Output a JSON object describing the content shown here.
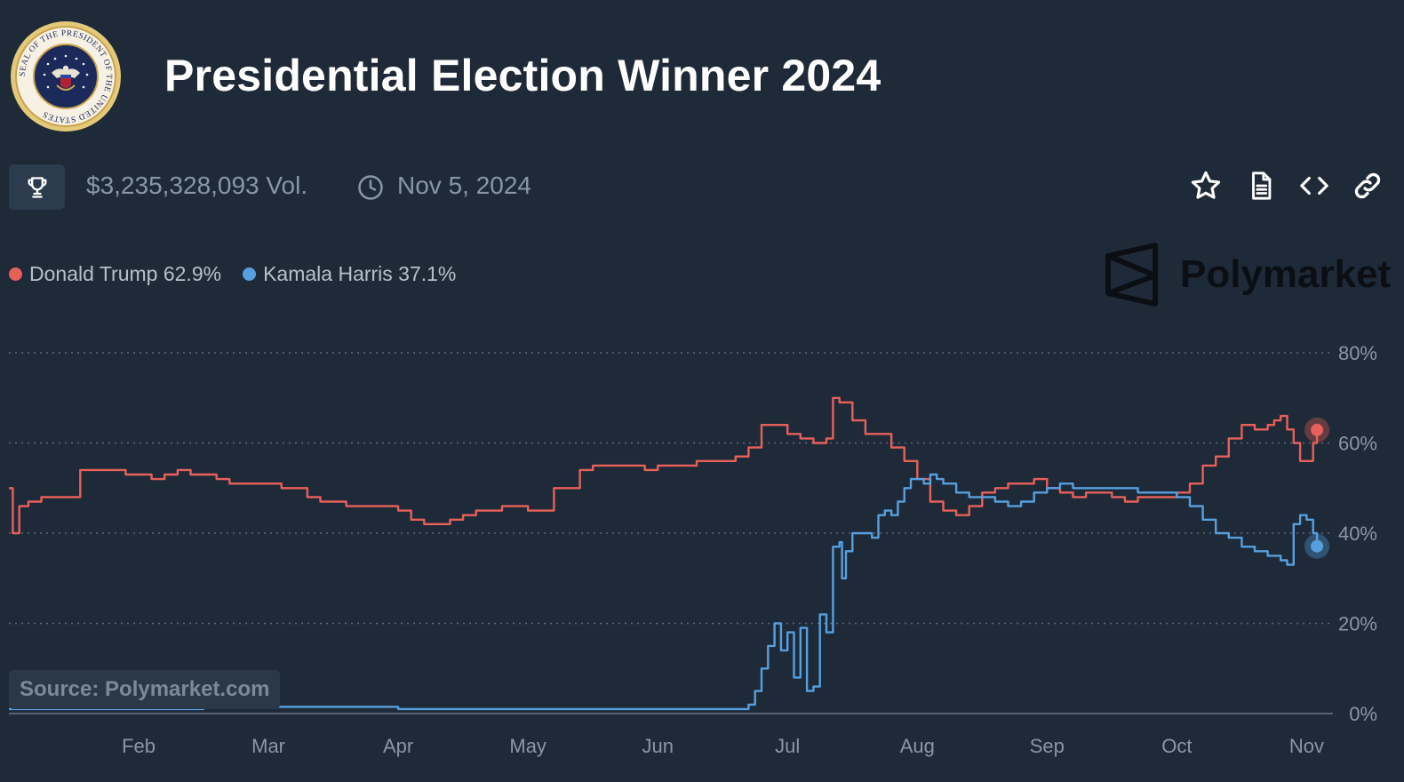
{
  "header": {
    "title": "Presidential Election Winner 2024",
    "seal_text": "SEAL OF THE PRESIDENT OF THE UNITED STATES",
    "volume": "$3,235,328,093 Vol.",
    "end_date": "Nov 5, 2024"
  },
  "icons": {
    "trophy": "trophy-icon",
    "clock": "clock-icon",
    "star": "star-icon",
    "document": "document-icon",
    "embed": "code-icon",
    "link": "link-icon"
  },
  "legend": [
    {
      "label": "Donald Trump 62.9%",
      "color": "#e8605a"
    },
    {
      "label": "Kamala Harris 37.1%",
      "color": "#56a0e0"
    }
  ],
  "brand": {
    "name": "Polymarket"
  },
  "source": "Source: Polymarket.com",
  "chart_data": {
    "type": "line",
    "title": "Presidential Election Winner 2024",
    "xlabel": "",
    "ylabel": "",
    "x_range": [
      0,
      10.1
    ],
    "ylim": [
      0,
      80
    ],
    "yticks": [
      0,
      20,
      40,
      60,
      80
    ],
    "ytick_labels": [
      "0%",
      "20%",
      "40%",
      "60%",
      "80%"
    ],
    "xtick_positions": [
      1,
      2,
      3,
      4,
      5,
      6,
      7,
      8,
      9,
      10
    ],
    "xtick_labels": [
      "Feb",
      "Mar",
      "Apr",
      "May",
      "Jun",
      "Jul",
      "Aug",
      "Sep",
      "Oct",
      "Nov"
    ],
    "grid": true,
    "series": [
      {
        "name": "Donald Trump",
        "color": "#e8605a",
        "final_value": 62.9,
        "x": [
          0,
          0.03,
          0.08,
          0.15,
          0.25,
          0.35,
          0.45,
          0.55,
          0.6,
          0.65,
          0.7,
          0.8,
          0.9,
          1.0,
          1.1,
          1.2,
          1.3,
          1.4,
          1.5,
          1.6,
          1.7,
          1.8,
          1.9,
          2.0,
          2.1,
          2.2,
          2.3,
          2.4,
          2.6,
          2.8,
          3.0,
          3.1,
          3.2,
          3.4,
          3.5,
          3.6,
          3.8,
          4.0,
          4.2,
          4.4,
          4.5,
          4.6,
          4.8,
          4.9,
          5.0,
          5.1,
          5.3,
          5.5,
          5.6,
          5.7,
          5.8,
          5.9,
          6.0,
          6.1,
          6.2,
          6.3,
          6.35,
          6.4,
          6.5,
          6.6,
          6.7,
          6.8,
          6.9,
          7.0,
          7.1,
          7.2,
          7.3,
          7.4,
          7.5,
          7.6,
          7.7,
          7.8,
          7.9,
          8.0,
          8.1,
          8.2,
          8.3,
          8.4,
          8.5,
          8.6,
          8.7,
          8.8,
          8.9,
          9.0,
          9.1,
          9.2,
          9.3,
          9.4,
          9.5,
          9.6,
          9.7,
          9.75,
          9.8,
          9.85,
          9.9,
          9.95,
          10.0,
          10.05,
          10.08
        ],
        "values": [
          50,
          40,
          46,
          47,
          48,
          48,
          48,
          54,
          54,
          54,
          54,
          54,
          53,
          53,
          52,
          53,
          54,
          53,
          53,
          52,
          51,
          51,
          51,
          51,
          50,
          50,
          48,
          47,
          46,
          46,
          45,
          43,
          42,
          43,
          44,
          45,
          46,
          45,
          50,
          54,
          55,
          55,
          55,
          54,
          55,
          55,
          56,
          56,
          57,
          59,
          64,
          64,
          62,
          61,
          60,
          61,
          70,
          69,
          65,
          62,
          62,
          59,
          56,
          52,
          47,
          45,
          44,
          46,
          49,
          50,
          51,
          51,
          52,
          50,
          49,
          48,
          49,
          49,
          48,
          47,
          48,
          48,
          48,
          49,
          51,
          55,
          57,
          61,
          64,
          63,
          64,
          65,
          66,
          63,
          60,
          56,
          56,
          60,
          62.9
        ]
      },
      {
        "name": "Kamala Harris",
        "color": "#56a0e0",
        "final_value": 37.1,
        "x": [
          0,
          0.5,
          1.0,
          1.5,
          2.0,
          2.5,
          3.0,
          3.5,
          4.0,
          4.5,
          5.0,
          5.4,
          5.6,
          5.7,
          5.75,
          5.8,
          5.85,
          5.9,
          5.95,
          6.0,
          6.05,
          6.1,
          6.15,
          6.2,
          6.25,
          6.3,
          6.35,
          6.4,
          6.42,
          6.45,
          6.5,
          6.55,
          6.6,
          6.65,
          6.7,
          6.75,
          6.8,
          6.85,
          6.9,
          6.95,
          7.0,
          7.05,
          7.1,
          7.15,
          7.2,
          7.3,
          7.4,
          7.5,
          7.6,
          7.7,
          7.8,
          7.9,
          8.0,
          8.1,
          8.2,
          8.3,
          8.4,
          8.5,
          8.6,
          8.7,
          8.8,
          8.9,
          9.0,
          9.1,
          9.2,
          9.3,
          9.4,
          9.5,
          9.6,
          9.7,
          9.8,
          9.85,
          9.9,
          9.95,
          10.0,
          10.05,
          10.08
        ],
        "values": [
          1,
          1,
          1,
          1.5,
          1.5,
          1.5,
          1,
          1,
          1,
          1,
          1,
          1,
          1,
          2,
          5,
          10,
          15,
          20,
          14,
          18,
          8,
          19,
          5,
          6,
          22,
          18,
          37,
          38,
          30,
          36,
          40,
          40,
          40,
          39,
          44,
          45,
          44,
          47,
          50,
          52,
          52,
          51,
          53,
          52,
          51,
          49,
          48,
          48,
          47,
          46,
          47,
          49,
          50,
          51,
          50,
          50,
          50,
          50,
          50,
          49,
          49,
          49,
          48,
          46,
          43,
          40,
          39,
          37,
          36,
          35,
          34,
          33,
          42,
          44,
          43,
          40,
          37.1
        ]
      }
    ]
  }
}
